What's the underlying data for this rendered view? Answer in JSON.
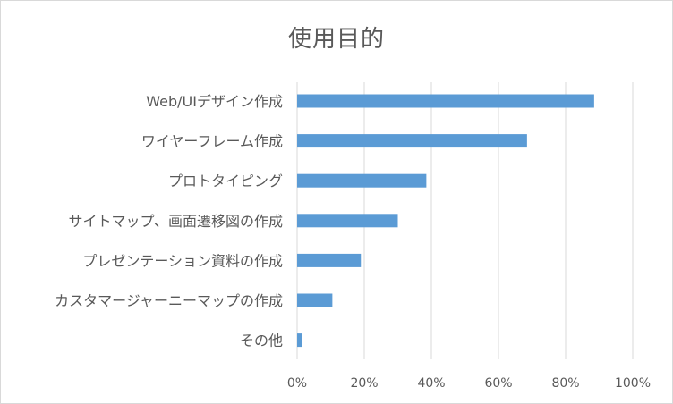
{
  "chart_data": {
    "type": "bar",
    "orientation": "horizontal",
    "title": "使用目的",
    "categories": [
      "Web/UIデザイン作成",
      "ワイヤーフレーム作成",
      "プロトタイピング",
      "サイトマップ、画面遷移図の作成",
      "プレゼンテーション資料の作成",
      "カスタマージャーニーマップの作成",
      "その他"
    ],
    "values": [
      88.5,
      68.5,
      38.5,
      30,
      19,
      10.5,
      1.5
    ],
    "xlim": [
      0,
      100
    ],
    "x_ticks": [
      "0%",
      "20%",
      "40%",
      "60%",
      "80%",
      "100%"
    ],
    "grid": "vertical",
    "bar_color": "#5b9bd5",
    "grid_color": "#d9d9d9"
  }
}
